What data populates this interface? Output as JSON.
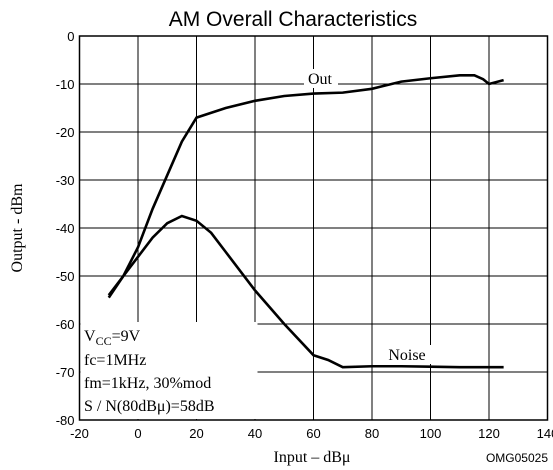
{
  "chart_data": {
    "type": "line",
    "title": "AM Overall Characteristics",
    "x_label": "Input – dBμ",
    "y_label": "Output - dBm",
    "code": "OMG05025",
    "xlim": [
      -20,
      140
    ],
    "xticks": [
      -20,
      0,
      20,
      40,
      60,
      80,
      100,
      120,
      140
    ],
    "ylim": [
      -80,
      0
    ],
    "yticks": [
      -80,
      -70,
      -60,
      -50,
      -40,
      -30,
      -20,
      -10,
      0
    ],
    "grid": true,
    "series": [
      {
        "name": "Out",
        "color": "#000000",
        "x": [
          -10,
          -5,
          0,
          5,
          10,
          15,
          20,
          30,
          40,
          50,
          60,
          70,
          80,
          90,
          100,
          110,
          115,
          118,
          120,
          125
        ],
        "values": [
          -54.5,
          -50,
          -44,
          -36,
          -29,
          -22,
          -17,
          -15,
          -13.5,
          -12.5,
          -12,
          -11.8,
          -11,
          -9.5,
          -8.8,
          -8.2,
          -8.2,
          -9,
          -10,
          -9.2
        ]
      },
      {
        "name": "Noise",
        "color": "#000000",
        "x": [
          -10,
          -5,
          0,
          5,
          10,
          15,
          20,
          25,
          30,
          40,
          50,
          60,
          65,
          70,
          80,
          90,
          100,
          110,
          125
        ],
        "values": [
          -54,
          -50,
          -46,
          -42,
          -39,
          -37.5,
          -38.5,
          -41,
          -45,
          -53,
          -60,
          -66.5,
          -67.5,
          -69,
          -68.8,
          -68.8,
          -68.9,
          -69,
          -69
        ]
      }
    ],
    "conditions": {
      "vcc": {
        "base": "V",
        "sub": "CC",
        "tail": "=9V"
      },
      "lines": [
        "fc=1MHz",
        "fm=1kHz, 30%mod",
        "S / N(80dBμ)=58dB"
      ]
    }
  }
}
